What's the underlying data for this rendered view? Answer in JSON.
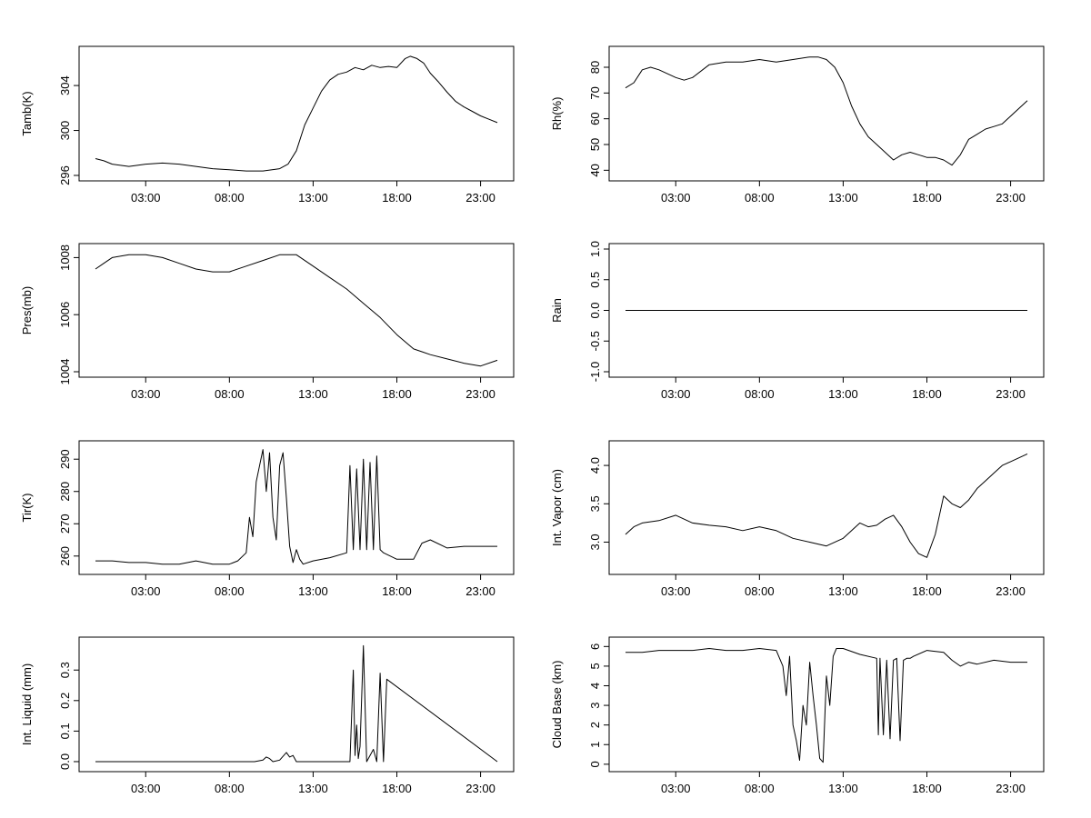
{
  "x_tick_labels": [
    "03:00",
    "08:00",
    "13:00",
    "18:00",
    "23:00"
  ],
  "chart_data": [
    {
      "type": "line",
      "ylabel": "Tamb(K)",
      "xlim": [
        0,
        24
      ],
      "ylim": [
        296,
        307
      ],
      "yticks": [
        296,
        300,
        304
      ],
      "x": [
        0,
        0.5,
        1,
        2,
        3,
        4,
        5,
        6,
        7,
        8,
        9,
        10,
        11,
        11.5,
        12,
        12.5,
        13,
        13.5,
        14,
        14.5,
        15,
        15.5,
        16,
        16.5,
        17,
        17.5,
        18,
        18.5,
        18.8,
        19.2,
        19.6,
        20,
        20.5,
        21,
        21.5,
        22,
        22.5,
        23,
        23.5,
        24
      ],
      "series": [
        {
          "values": [
            297.5,
            297.3,
            297.0,
            296.8,
            297.0,
            297.1,
            297.0,
            296.8,
            296.6,
            296.5,
            296.4,
            296.4,
            296.6,
            297.0,
            298.2,
            300.5,
            302.0,
            303.5,
            304.5,
            305.0,
            305.2,
            305.6,
            305.4,
            305.8,
            305.6,
            305.7,
            305.6,
            306.4,
            306.6,
            306.4,
            306.0,
            305.1,
            304.3,
            303.4,
            302.6,
            302.1,
            301.7,
            301.3,
            301.0,
            300.7
          ]
        }
      ]
    },
    {
      "type": "line",
      "ylabel": "Rh(%)",
      "xlim": [
        0,
        24
      ],
      "ylim": [
        38,
        86
      ],
      "yticks": [
        40,
        50,
        60,
        70,
        80
      ],
      "x": [
        0,
        0.5,
        1,
        1.5,
        2,
        3,
        3.5,
        4,
        5,
        6,
        7,
        8,
        9,
        10,
        11,
        11.5,
        12,
        12.5,
        13,
        13.5,
        14,
        14.5,
        15,
        15.5,
        16,
        16.5,
        17,
        17.5,
        18,
        18.5,
        19,
        19.5,
        20,
        20.5,
        21,
        21.5,
        22,
        22.5,
        23,
        23.5,
        24
      ],
      "series": [
        {
          "values": [
            72,
            74,
            79,
            80,
            79,
            76,
            75,
            76,
            81,
            82,
            82,
            83,
            82,
            83,
            84,
            84,
            83,
            80,
            74,
            65,
            58,
            53,
            50,
            47,
            44,
            46,
            47,
            46,
            45,
            45,
            44,
            42,
            46,
            52,
            54,
            56,
            57,
            58,
            61,
            64,
            67
          ]
        }
      ]
    },
    {
      "type": "line",
      "ylabel": "Pres(mb)",
      "xlim": [
        0,
        24
      ],
      "ylim": [
        1004,
        1008.3
      ],
      "yticks": [
        1004,
        1006,
        1008
      ],
      "x": [
        0,
        0.5,
        1,
        2,
        3,
        4,
        5,
        6,
        7,
        8,
        9,
        10,
        11,
        12,
        13,
        14,
        15,
        16,
        17,
        18,
        19,
        19.5,
        20,
        21,
        22,
        23,
        24
      ],
      "series": [
        {
          "values": [
            1007.6,
            1007.8,
            1008.0,
            1008.1,
            1008.1,
            1008.0,
            1007.8,
            1007.6,
            1007.5,
            1007.5,
            1007.7,
            1007.9,
            1008.1,
            1008.1,
            1007.7,
            1007.3,
            1006.9,
            1006.4,
            1005.9,
            1005.3,
            1004.8,
            1004.7,
            1004.6,
            1004.45,
            1004.3,
            1004.2,
            1004.4
          ]
        }
      ]
    },
    {
      "type": "line",
      "ylabel": "Rain",
      "xlim": [
        0,
        24
      ],
      "ylim": [
        -1.0,
        1.0
      ],
      "yticks": [
        -1.0,
        -0.5,
        0.0,
        0.5,
        1.0
      ],
      "x": [
        0,
        24
      ],
      "series": [
        {
          "values": [
            0,
            0
          ]
        }
      ]
    },
    {
      "type": "line",
      "ylabel": "Tir(K)",
      "xlim": [
        0,
        24
      ],
      "ylim": [
        256,
        294
      ],
      "yticks": [
        260,
        270,
        280,
        290
      ],
      "x": [
        0,
        1,
        2,
        3,
        4,
        5,
        6,
        7,
        8,
        8.5,
        9,
        9.2,
        9.4,
        9.6,
        9.8,
        10.0,
        10.2,
        10.4,
        10.6,
        10.8,
        11.0,
        11.2,
        11.4,
        11.6,
        11.8,
        12.0,
        12.2,
        12.4,
        13,
        14,
        15,
        15.2,
        15.4,
        15.6,
        15.8,
        16.0,
        16.2,
        16.4,
        16.6,
        16.8,
        17.0,
        17.2,
        18,
        19,
        19.5,
        20,
        21,
        22,
        23,
        24
      ],
      "series": [
        {
          "values": [
            258.5,
            258.5,
            258.0,
            258.0,
            257.5,
            257.5,
            258.5,
            257.5,
            257.5,
            258.5,
            261,
            272,
            266,
            283,
            288,
            293,
            280,
            292,
            272,
            265,
            288,
            292,
            278,
            263,
            258,
            262,
            259,
            257.5,
            258.5,
            259.5,
            261,
            288,
            262,
            287,
            262,
            290,
            262,
            289,
            262,
            291,
            262,
            261,
            259,
            259,
            264,
            265,
            262.5,
            263,
            263,
            263
          ]
        }
      ]
    },
    {
      "type": "line",
      "ylabel": "Int. Vapor (cm)",
      "xlim": [
        0,
        24
      ],
      "ylim": [
        2.65,
        4.25
      ],
      "yticks": [
        3.0,
        3.5,
        4.0
      ],
      "x": [
        0,
        0.5,
        1,
        2,
        3,
        4,
        5,
        6,
        7,
        8,
        9,
        10,
        11,
        12,
        13,
        14,
        14.5,
        15,
        15.5,
        16,
        16.5,
        17,
        17.5,
        18,
        18.5,
        19,
        19.5,
        20,
        20.5,
        21,
        21.5,
        22,
        22.5,
        23,
        23.5,
        24
      ],
      "series": [
        {
          "values": [
            3.1,
            3.2,
            3.25,
            3.28,
            3.35,
            3.25,
            3.22,
            3.2,
            3.15,
            3.2,
            3.15,
            3.05,
            3.0,
            2.95,
            3.05,
            3.25,
            3.2,
            3.22,
            3.3,
            3.35,
            3.2,
            3.0,
            2.85,
            2.8,
            3.1,
            3.6,
            3.5,
            3.45,
            3.55,
            3.7,
            3.8,
            3.9,
            4.0,
            4.05,
            4.1,
            4.15
          ]
        }
      ]
    },
    {
      "type": "line",
      "ylabel": "Int. Liquid (mm)",
      "xlim": [
        0,
        24
      ],
      "ylim": [
        -0.015,
        0.39
      ],
      "yticks": [
        0.0,
        0.1,
        0.2,
        0.3
      ],
      "x": [
        0,
        9.5,
        10,
        10.2,
        10.4,
        10.6,
        11,
        11.4,
        11.6,
        11.8,
        12.0,
        15.2,
        15.4,
        15.5,
        15.6,
        15.7,
        15.8,
        16.0,
        16.2,
        16.4,
        16.6,
        16.8,
        17.0,
        17.2,
        17.4,
        24
      ],
      "series": [
        {
          "values": [
            0,
            0,
            0.005,
            0.015,
            0.01,
            0,
            0.005,
            0.03,
            0.015,
            0.02,
            0,
            0,
            0.3,
            0.02,
            0.12,
            0.01,
            0.05,
            0.38,
            0,
            0.02,
            0.04,
            0,
            0.29,
            0,
            0.27,
            0
          ]
        }
      ]
    },
    {
      "type": "line",
      "ylabel": "Cloud Base (km)",
      "xlim": [
        0,
        24
      ],
      "ylim": [
        -0.1,
        6.2
      ],
      "yticks": [
        0,
        1,
        2,
        3,
        4,
        5,
        6
      ],
      "x": [
        0,
        1,
        2,
        3,
        4,
        5,
        6,
        7,
        8,
        9,
        9.4,
        9.6,
        9.8,
        10.0,
        10.2,
        10.4,
        10.6,
        10.8,
        11.0,
        11.2,
        11.4,
        11.6,
        11.8,
        12.0,
        12.2,
        12.4,
        12.6,
        13,
        14,
        15,
        15.1,
        15.2,
        15.4,
        15.6,
        15.8,
        16.0,
        16.2,
        16.4,
        16.6,
        16.8,
        17.0,
        17.2,
        18,
        19,
        19.5,
        20,
        20.5,
        21,
        22,
        23,
        24
      ],
      "series": [
        {
          "values": [
            5.7,
            5.7,
            5.8,
            5.8,
            5.8,
            5.9,
            5.8,
            5.8,
            5.9,
            5.8,
            5.0,
            3.5,
            5.5,
            2.0,
            1.2,
            0.2,
            3.0,
            2.0,
            5.2,
            3.5,
            2.0,
            0.3,
            0.1,
            4.5,
            3.0,
            5.5,
            5.9,
            5.9,
            5.6,
            5.4,
            1.5,
            5.4,
            1.5,
            5.3,
            1.3,
            5.3,
            5.4,
            1.2,
            5.3,
            5.4,
            5.4,
            5.5,
            5.8,
            5.7,
            5.3,
            5.0,
            5.2,
            5.1,
            5.3,
            5.2,
            5.2
          ]
        }
      ]
    }
  ]
}
